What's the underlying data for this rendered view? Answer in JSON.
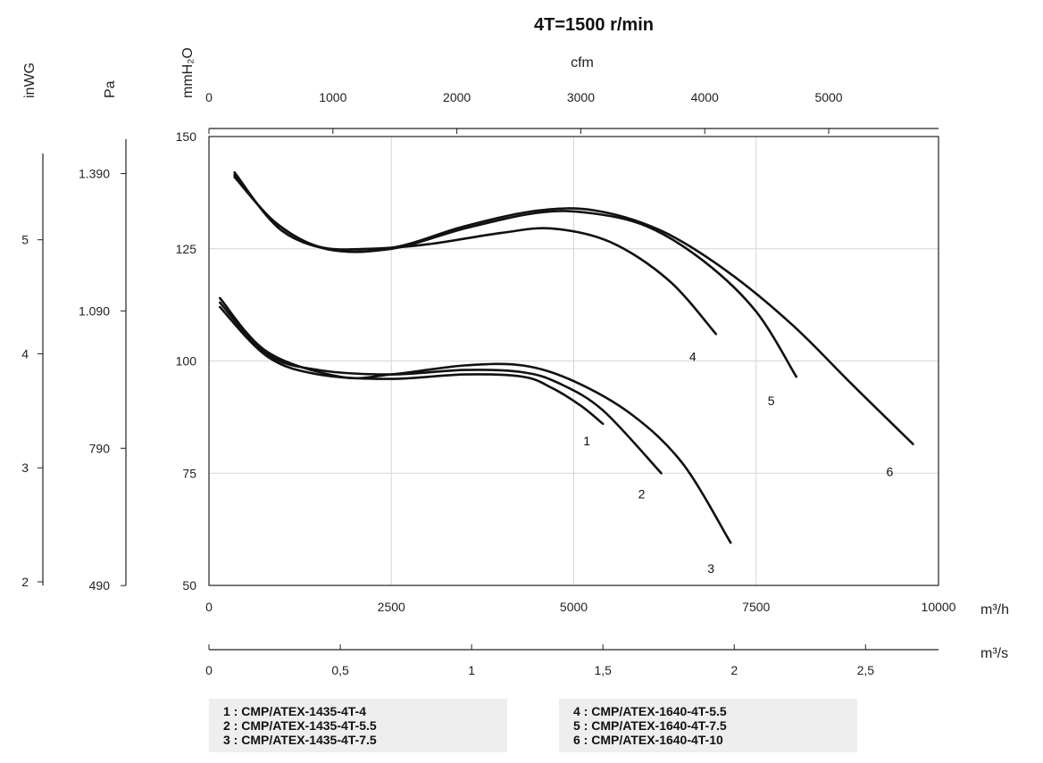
{
  "chart_data": {
    "type": "line",
    "title": "4T=1500 r/min",
    "x": {
      "label": "m³/h",
      "range": [
        0,
        10000
      ],
      "ticks": [
        0,
        2500,
        5000,
        7500,
        10000
      ],
      "tick_labels": [
        "0",
        "2500",
        "5000",
        "7500",
        "10000"
      ]
    },
    "x_top": {
      "label": "cfm",
      "ticks": [
        0,
        1000,
        2000,
        3000,
        4000,
        5000
      ],
      "tick_labels": [
        "0",
        "1000",
        "2000",
        "3000",
        "4000",
        "5000"
      ]
    },
    "x_bottom2": {
      "label": "m³/s",
      "ticks": [
        0,
        0.5,
        1,
        1.5,
        2,
        2.5
      ],
      "tick_labels": [
        "0",
        "0,5",
        "1",
        "1,5",
        "2",
        "2,5"
      ]
    },
    "y": {
      "label": "mmH₂O",
      "range": [
        50,
        150
      ],
      "ticks": [
        50,
        75,
        100,
        125,
        150
      ],
      "tick_labels": [
        "50",
        "75",
        "100",
        "125",
        "150"
      ]
    },
    "y_pa": {
      "label": "Pa",
      "ticks": [
        490,
        790,
        1090,
        1390
      ],
      "tick_labels": [
        "490",
        "790",
        "1.090",
        "1.390"
      ]
    },
    "y_inwg": {
      "label": "inWG",
      "ticks": [
        2,
        3,
        4,
        5
      ],
      "tick_labels": [
        "2",
        "3",
        "4",
        "5"
      ]
    },
    "grid": true,
    "series": [
      {
        "label": "1",
        "points": [
          [
            150,
            112
          ],
          [
            800,
            101
          ],
          [
            1500,
            97
          ],
          [
            2500,
            96
          ],
          [
            3500,
            97
          ],
          [
            4300,
            96.5
          ],
          [
            4700,
            94
          ],
          [
            5100,
            90
          ],
          [
            5400,
            86
          ]
        ]
      },
      {
        "label": "2",
        "points": [
          [
            150,
            113
          ],
          [
            800,
            101.5
          ],
          [
            1500,
            98
          ],
          [
            2500,
            97
          ],
          [
            3500,
            98
          ],
          [
            4300,
            97.5
          ],
          [
            4800,
            95
          ],
          [
            5400,
            89
          ],
          [
            6200,
            75
          ]
        ]
      },
      {
        "label": "3",
        "points": [
          [
            150,
            114
          ],
          [
            800,
            102
          ],
          [
            1800,
            96.5
          ],
          [
            2500,
            97
          ],
          [
            3500,
            99
          ],
          [
            4300,
            99
          ],
          [
            5000,
            95.5
          ],
          [
            5800,
            88
          ],
          [
            6500,
            77
          ],
          [
            7150,
            59.5
          ]
        ]
      },
      {
        "label": "4",
        "points": [
          [
            350,
            141
          ],
          [
            900,
            131
          ],
          [
            1500,
            125.5
          ],
          [
            2200,
            125
          ],
          [
            3000,
            126
          ],
          [
            4000,
            128.5
          ],
          [
            4700,
            129.5
          ],
          [
            5500,
            126.5
          ],
          [
            6300,
            118
          ],
          [
            6950,
            106
          ]
        ]
      },
      {
        "label": "5",
        "points": [
          [
            350,
            141.5
          ],
          [
            900,
            131
          ],
          [
            1600,
            125
          ],
          [
            2500,
            125
          ],
          [
            3500,
            129.5
          ],
          [
            4500,
            133
          ],
          [
            5200,
            133
          ],
          [
            6000,
            130
          ],
          [
            6800,
            122
          ],
          [
            7500,
            111
          ],
          [
            8050,
            96.5
          ]
        ]
      },
      {
        "label": "6",
        "points": [
          [
            350,
            142
          ],
          [
            1000,
            129
          ],
          [
            1800,
            124.5
          ],
          [
            2600,
            125.5
          ],
          [
            3500,
            130
          ],
          [
            4500,
            133.5
          ],
          [
            5300,
            133.5
          ],
          [
            6200,
            129
          ],
          [
            7100,
            120
          ],
          [
            8000,
            108
          ],
          [
            8800,
            95
          ],
          [
            9650,
            81.5
          ]
        ]
      }
    ],
    "curve_labels": [
      "1",
      "2",
      "3",
      "4",
      "5",
      "6"
    ],
    "legend": {
      "left": [
        "1 : CMP/ATEX-1435-4T-4",
        "2 : CMP/ATEX-1435-4T-5.5",
        "3 : CMP/ATEX-1435-4T-7.5"
      ],
      "right": [
        "4 : CMP/ATEX-1640-4T-5.5",
        "5 : CMP/ATEX-1640-4T-7.5",
        "6 : CMP/ATEX-1640-4T-10"
      ]
    }
  }
}
